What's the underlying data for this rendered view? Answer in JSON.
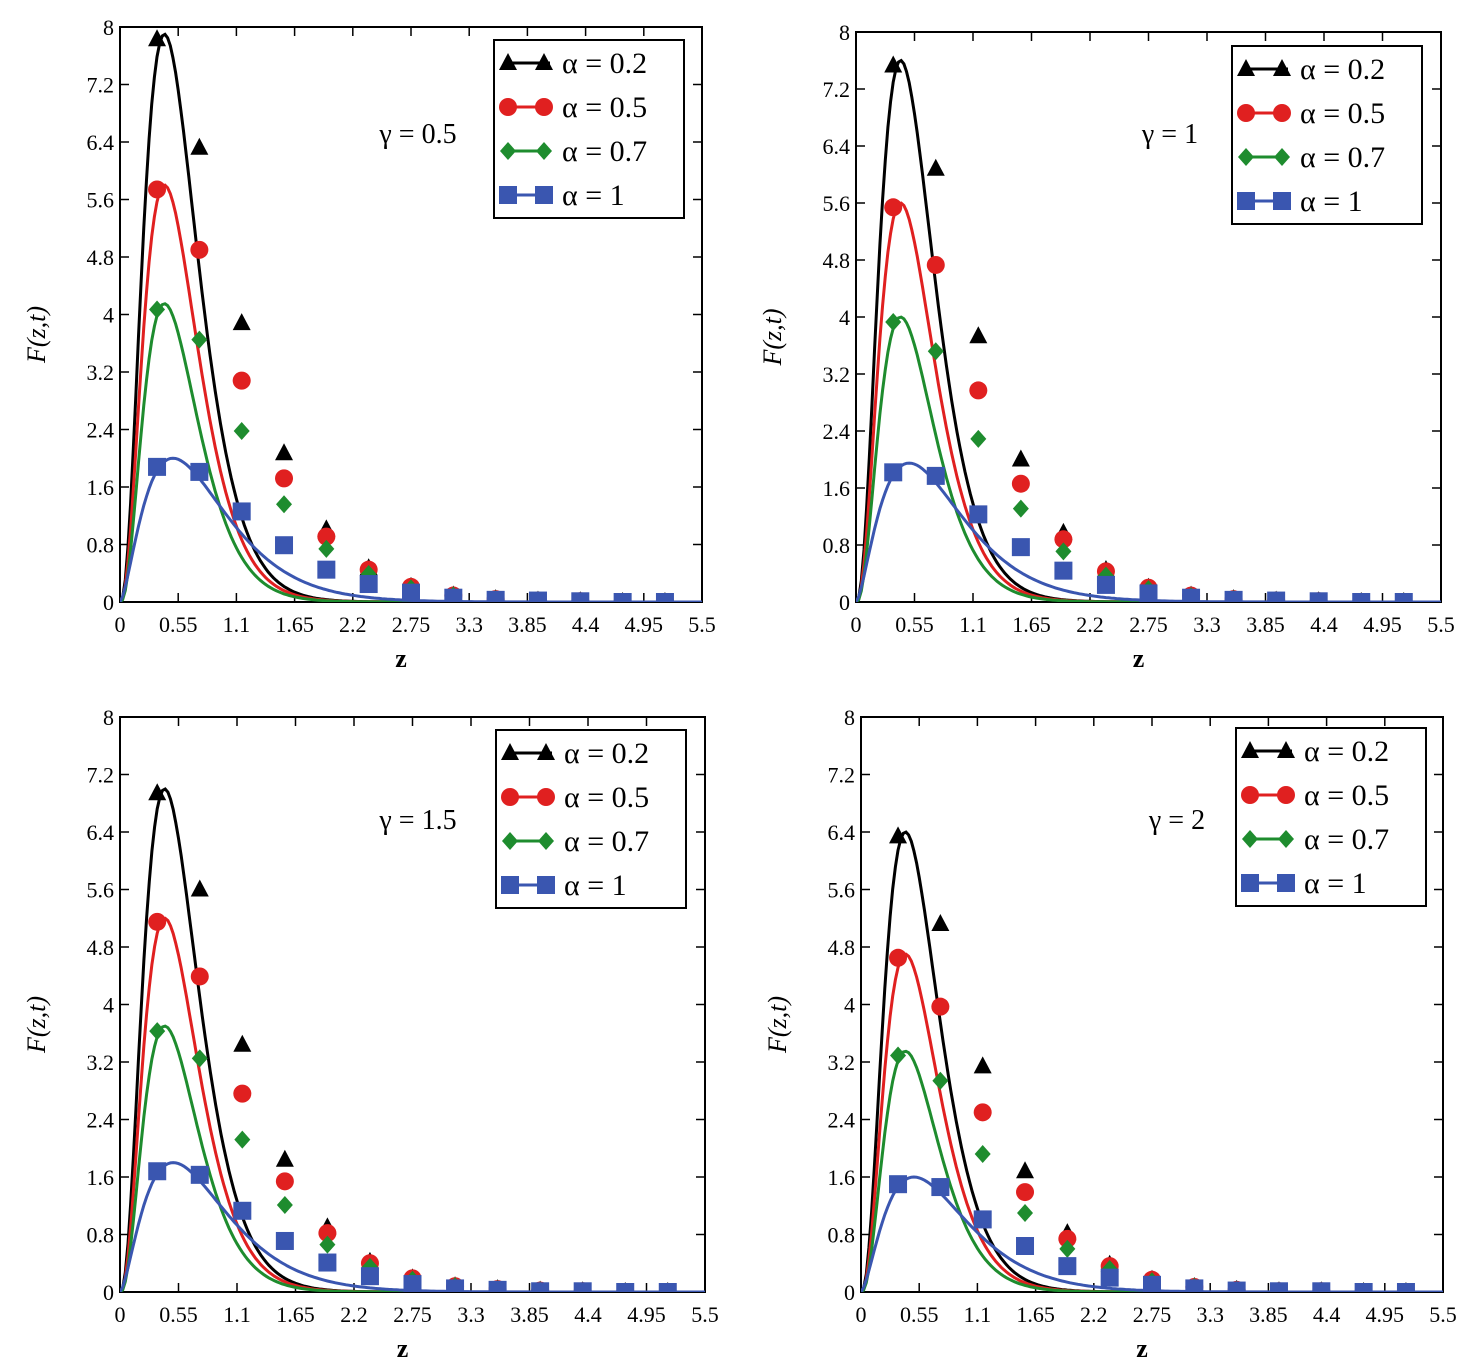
{
  "figure": {
    "colors": {
      "a02": "#000000",
      "a05": "#e02020",
      "a07": "#1e8c2e",
      "a1": "#3a56b0"
    },
    "shared": {
      "x_ticks": [
        0,
        0.55,
        1.1,
        1.65,
        2.2,
        2.75,
        3.3,
        3.85,
        4.4,
        4.95,
        5.5
      ],
      "x_tick_labels": [
        "0",
        "0.55",
        "1.1",
        "1.65",
        "2.2",
        "2.75",
        "3.3",
        "3.85",
        "4.4",
        "4.95",
        "5.5"
      ],
      "y_ticks": [
        0,
        0.8,
        1.6,
        2.4,
        3.2,
        4,
        4.8,
        5.6,
        6.4,
        7.2,
        8
      ],
      "y_tick_labels": [
        "0",
        "0.8",
        "1.6",
        "2.4",
        "3.2",
        "4",
        "4.8",
        "5.6",
        "6.4",
        "7.2",
        "8"
      ],
      "marker_x": [
        0.35,
        0.75,
        1.15,
        1.55,
        1.95,
        2.35,
        2.75,
        3.15,
        3.55,
        3.95,
        4.35,
        4.75,
        5.15
      ]
    }
  },
  "chart_data": [
    {
      "type": "line",
      "title": "",
      "annotation": "γ = 0.5",
      "xlabel": "z",
      "ylabel": "F(z,t)",
      "xlim": [
        0,
        5.5
      ],
      "ylim": [
        0,
        8
      ],
      "legend_position": "top-right",
      "series": [
        {
          "name": "α = 0.2",
          "peak": 7.9,
          "markers": [
            7.83,
            6.32,
            3.88,
            2.07,
            1.01,
            0.47,
            0.21,
            0.09,
            0.04,
            0.02,
            0.01,
            0.0,
            0.0
          ]
        },
        {
          "name": "α = 0.5",
          "peak": 5.8,
          "markers": [
            5.74,
            4.9,
            3.08,
            1.72,
            0.91,
            0.45,
            0.21,
            0.09,
            0.04,
            0.02,
            0.01,
            0.0,
            0.0
          ]
        },
        {
          "name": "α = 0.7",
          "peak": 4.15,
          "markers": [
            4.07,
            3.65,
            2.38,
            1.36,
            0.74,
            0.39,
            0.19,
            0.09,
            0.04,
            0.02,
            0.01,
            0.0,
            0.0
          ]
        },
        {
          "name": "α = 1",
          "peak": 2.0,
          "markers": [
            1.88,
            1.81,
            1.26,
            0.79,
            0.45,
            0.25,
            0.13,
            0.06,
            0.03,
            0.02,
            0.01,
            0.0,
            0.0
          ]
        }
      ]
    },
    {
      "type": "line",
      "title": "",
      "annotation": "γ = 1",
      "xlabel": "z",
      "ylabel": "F(z,t)",
      "xlim": [
        0,
        5.5
      ],
      "ylim": [
        0,
        8
      ],
      "legend_position": "top-right",
      "series": [
        {
          "name": "α = 0.2",
          "peak": 7.6,
          "markers": [
            7.53,
            6.08,
            3.73,
            2.0,
            0.97,
            0.45,
            0.2,
            0.09,
            0.04,
            0.02,
            0.01,
            0.0,
            0.0
          ]
        },
        {
          "name": "α = 0.5",
          "peak": 5.6,
          "markers": [
            5.54,
            4.73,
            2.97,
            1.66,
            0.88,
            0.43,
            0.2,
            0.09,
            0.04,
            0.02,
            0.01,
            0.0,
            0.0
          ]
        },
        {
          "name": "α = 0.7",
          "peak": 4.0,
          "markers": [
            3.93,
            3.52,
            2.29,
            1.31,
            0.71,
            0.37,
            0.18,
            0.08,
            0.04,
            0.02,
            0.01,
            0.0,
            0.0
          ]
        },
        {
          "name": "α = 1",
          "peak": 1.95,
          "markers": [
            1.82,
            1.77,
            1.23,
            0.77,
            0.44,
            0.24,
            0.12,
            0.06,
            0.03,
            0.02,
            0.01,
            0.0,
            0.0
          ]
        }
      ]
    },
    {
      "type": "line",
      "title": "",
      "annotation": "γ = 1.5",
      "xlabel": "z",
      "ylabel": "F(z,t)",
      "xlim": [
        0,
        5.5
      ],
      "ylim": [
        0,
        8
      ],
      "legend_position": "top-right",
      "series": [
        {
          "name": "α = 0.2",
          "peak": 7.0,
          "markers": [
            6.94,
            5.6,
            3.44,
            1.84,
            0.9,
            0.42,
            0.19,
            0.08,
            0.04,
            0.02,
            0.01,
            0.0,
            0.0
          ]
        },
        {
          "name": "α = 0.5",
          "peak": 5.2,
          "markers": [
            5.15,
            4.39,
            2.76,
            1.54,
            0.82,
            0.4,
            0.19,
            0.08,
            0.04,
            0.02,
            0.01,
            0.0,
            0.0
          ]
        },
        {
          "name": "α = 0.7",
          "peak": 3.7,
          "markers": [
            3.63,
            3.25,
            2.12,
            1.21,
            0.66,
            0.35,
            0.17,
            0.08,
            0.04,
            0.02,
            0.01,
            0.0,
            0.0
          ]
        },
        {
          "name": "α = 1",
          "peak": 1.8,
          "markers": [
            1.68,
            1.63,
            1.13,
            0.71,
            0.41,
            0.22,
            0.11,
            0.05,
            0.03,
            0.01,
            0.01,
            0.0,
            0.0
          ]
        }
      ]
    },
    {
      "type": "line",
      "title": "",
      "annotation": "γ = 2",
      "xlabel": "z",
      "ylabel": "F(z,t)",
      "xlim": [
        0,
        5.5
      ],
      "ylim": [
        0,
        8
      ],
      "legend_position": "top-right",
      "series": [
        {
          "name": "α = 0.2",
          "peak": 6.4,
          "markers": [
            6.34,
            5.12,
            3.14,
            1.68,
            0.82,
            0.38,
            0.17,
            0.07,
            0.03,
            0.01,
            0.01,
            0.0,
            0.0
          ]
        },
        {
          "name": "α = 0.5",
          "peak": 4.7,
          "markers": [
            4.65,
            3.97,
            2.5,
            1.39,
            0.74,
            0.36,
            0.17,
            0.07,
            0.03,
            0.01,
            0.01,
            0.0,
            0.0
          ]
        },
        {
          "name": "α = 0.7",
          "peak": 3.35,
          "markers": [
            3.29,
            2.94,
            1.92,
            1.1,
            0.6,
            0.32,
            0.15,
            0.07,
            0.03,
            0.01,
            0.01,
            0.0,
            0.0
          ]
        },
        {
          "name": "α = 1",
          "peak": 1.6,
          "markers": [
            1.5,
            1.46,
            1.01,
            0.64,
            0.36,
            0.2,
            0.1,
            0.05,
            0.02,
            0.01,
            0.01,
            0.0,
            0.0
          ]
        }
      ]
    }
  ]
}
